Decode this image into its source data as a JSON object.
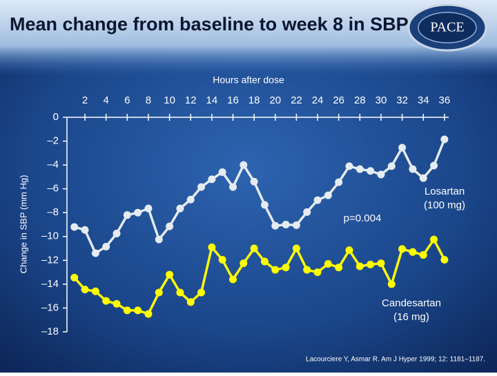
{
  "chart_data": {
    "type": "line",
    "title": "Mean change from baseline to week 8 in SBP",
    "logo": "PACE",
    "x_label": "Hours after dose",
    "y_label": "Change in SBP (mm Hg)",
    "x": [
      1,
      2,
      3,
      4,
      5,
      6,
      7,
      8,
      9,
      10,
      11,
      12,
      13,
      14,
      15,
      16,
      17,
      18,
      19,
      20,
      21,
      22,
      23,
      24,
      25,
      26,
      27,
      28,
      29,
      30,
      31,
      32,
      33,
      34,
      35,
      36
    ],
    "xlim": [
      0.3,
      36.4
    ],
    "xticks": [
      2,
      4,
      6,
      8,
      10,
      12,
      14,
      16,
      18,
      20,
      22,
      24,
      26,
      28,
      30,
      32,
      34,
      36
    ],
    "ylim": [
      -18,
      0
    ],
    "yticks": [
      0,
      {
        "value": -2,
        "label": "–2"
      },
      {
        "value": -4,
        "label": "–4"
      },
      {
        "value": -6,
        "label": "–6"
      },
      {
        "value": -8,
        "label": "–8"
      },
      {
        "value": -10,
        "label": "–10"
      },
      {
        "value": -12,
        "label": "–12"
      },
      {
        "value": -14,
        "label": "–14"
      },
      {
        "value": -16,
        "label": "–16"
      },
      {
        "value": -18,
        "label": "–18"
      }
    ],
    "series": [
      {
        "name": "Losartan (100 mg)",
        "color": "#e4ebf1",
        "values": [
          -9.2,
          -9.45,
          -11.4,
          -10.85,
          -9.75,
          -8.2,
          -8.0,
          -7.65,
          -10.25,
          -9.15,
          -7.65,
          -6.9,
          -5.85,
          -5.2,
          -4.6,
          -5.85,
          -4.0,
          -5.4,
          -7.35,
          -9.1,
          -9.0,
          -9.05,
          -7.95,
          -6.95,
          -6.55,
          -5.45,
          -4.1,
          -4.35,
          -4.5,
          -4.8,
          -4.1,
          -2.55,
          -4.35,
          -5.1,
          -4.05,
          -1.85
        ]
      },
      {
        "name": "Candesartan (16 mg)",
        "color": "#ffff00",
        "values": [
          -13.45,
          -14.45,
          -14.6,
          -15.4,
          -15.65,
          -16.2,
          -16.2,
          -16.5,
          -14.7,
          -13.2,
          -14.7,
          -15.5,
          -14.7,
          -10.9,
          -11.95,
          -13.6,
          -12.25,
          -11.0,
          -12.1,
          -12.8,
          -12.6,
          -11.0,
          -12.8,
          -13.0,
          -12.3,
          -12.6,
          -11.15,
          -12.5,
          -12.35,
          -12.25,
          -14.0,
          -11.05,
          -11.3,
          -11.55,
          -10.25,
          -11.95
        ]
      }
    ],
    "annotation": "p=0.004",
    "citation": "Lacourciere Y, Asmar R. Am J Hyper 1999; 12: 1181–1187."
  }
}
